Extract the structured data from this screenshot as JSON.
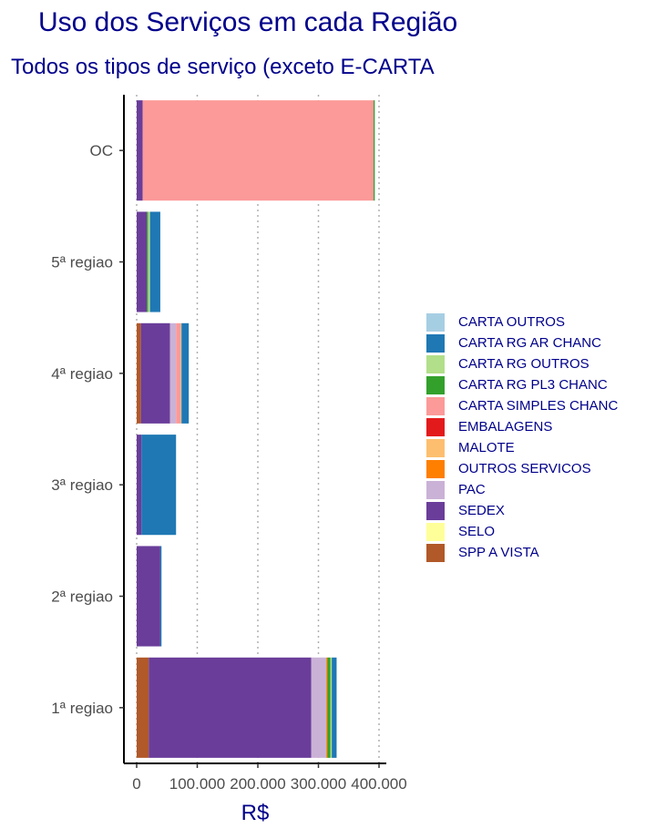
{
  "chart_data": {
    "type": "bar",
    "orientation": "horizontal",
    "stacked": true,
    "title": "Uso dos Serviços em cada Região",
    "subtitle": "Todos os tipos de serviço (exceto E-CARTA",
    "xlabel": "R$",
    "ylabel": "",
    "xlim": [
      0,
      410000
    ],
    "x_ticks": [
      0,
      100000,
      200000,
      300000,
      400000
    ],
    "x_tick_labels": [
      "0",
      "100.000",
      "200.000",
      "300.000",
      "400.000"
    ],
    "grid": "vertical dotted",
    "legend_position": "right",
    "categories": [
      "1ª regiao",
      "2ª regiao",
      "3ª regiao",
      "4ª regiao",
      "5ª regiao",
      "OC"
    ],
    "series": [
      {
        "name": "SPP A VISTA",
        "color": "#B15928",
        "values": [
          20000,
          0,
          0,
          7000,
          0,
          0
        ]
      },
      {
        "name": "SELO",
        "color": "#FFFF99",
        "values": [
          0,
          0,
          0,
          0,
          0,
          0
        ]
      },
      {
        "name": "SEDEX",
        "color": "#6A3D9A",
        "values": [
          268000,
          39000,
          8000,
          48000,
          17000,
          10000
        ]
      },
      {
        "name": "PAC",
        "color": "#CAB2D6",
        "values": [
          25000,
          0,
          0,
          10000,
          0,
          0
        ]
      },
      {
        "name": "OUTROS SERVICOS",
        "color": "#FF7F00",
        "values": [
          2000,
          0,
          0,
          0,
          0,
          0
        ]
      },
      {
        "name": "MALOTE",
        "color": "#FDBF6F",
        "values": [
          0,
          0,
          0,
          0,
          0,
          0
        ]
      },
      {
        "name": "EMBALAGENS",
        "color": "#E31A1C",
        "values": [
          0,
          0,
          0,
          0,
          0,
          0
        ]
      },
      {
        "name": "CARTA SIMPLES CHANC",
        "color": "#FB9A99",
        "values": [
          0,
          0,
          0,
          8000,
          0,
          381000
        ]
      },
      {
        "name": "CARTA RG PL3 CHANC",
        "color": "#33A02C",
        "values": [
          5000,
          0,
          0,
          0,
          2000,
          2000
        ]
      },
      {
        "name": "CARTA RG OUTROS",
        "color": "#B2DF8A",
        "values": [
          2000,
          0,
          0,
          1000,
          3000,
          0
        ]
      },
      {
        "name": "CARTA RG AR CHANC",
        "color": "#1F78B4",
        "values": [
          8000,
          2000,
          57000,
          12000,
          17000,
          0
        ]
      },
      {
        "name": "CARTA OUTROS",
        "color": "#A6CEE3",
        "values": [
          0,
          0,
          0,
          0,
          0,
          0
        ]
      }
    ],
    "legend": [
      "CARTA OUTROS",
      "CARTA RG AR CHANC",
      "CARTA RG OUTROS",
      "CARTA RG PL3 CHANC",
      "CARTA SIMPLES CHANC",
      "EMBALAGENS",
      "MALOTE",
      "OUTROS SERVICOS",
      "PAC",
      "SEDEX",
      "SELO",
      "SPP A VISTA"
    ]
  }
}
